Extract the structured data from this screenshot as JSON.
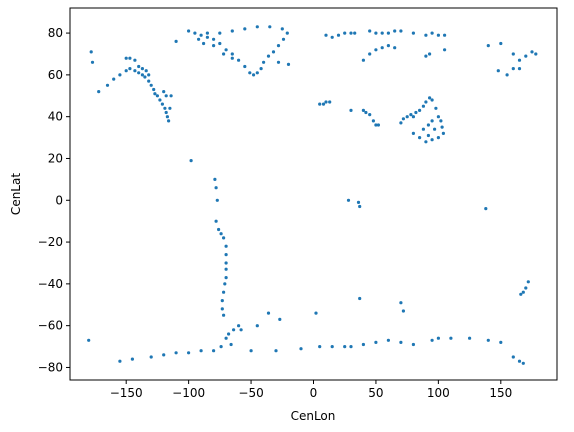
{
  "chart_data": {
    "type": "scatter",
    "xlabel": "CenLon",
    "ylabel": "CenLat",
    "xlim": [
      -195,
      195
    ],
    "ylim": [
      -86,
      92
    ],
    "xticks": [
      -150,
      -100,
      -50,
      0,
      50,
      100,
      150
    ],
    "yticks": [
      -80,
      -60,
      -40,
      -20,
      0,
      20,
      40,
      60,
      80
    ],
    "xtick_labels": [
      "−150",
      "−100",
      "−50",
      "0",
      "50",
      "100",
      "150"
    ],
    "ytick_labels": [
      "−80",
      "−60",
      "−40",
      "−20",
      "0",
      "20",
      "40",
      "60",
      "80"
    ],
    "grid": false,
    "marker_color": "#1f77b4",
    "marker_size": "small dots",
    "series": [
      {
        "points": [
          [
            -178,
            71
          ],
          [
            -177,
            66
          ],
          [
            -172,
            52
          ],
          [
            -165,
            55
          ],
          [
            -160,
            58
          ],
          [
            -155,
            60
          ],
          [
            -150,
            62
          ],
          [
            -147,
            63
          ],
          [
            -143,
            62
          ],
          [
            -140,
            61
          ],
          [
            -137,
            60
          ],
          [
            -135,
            59
          ],
          [
            -132,
            57
          ],
          [
            -130,
            55
          ],
          [
            -128,
            53
          ],
          [
            -127,
            51
          ],
          [
            -125,
            50
          ],
          [
            -123,
            48
          ],
          [
            -121,
            46
          ],
          [
            -119,
            44
          ],
          [
            -118,
            42
          ],
          [
            -117,
            40
          ],
          [
            -116,
            38
          ],
          [
            -115,
            44
          ],
          [
            -114,
            50
          ],
          [
            -150,
            68
          ],
          [
            -147,
            68
          ],
          [
            -143,
            67
          ],
          [
            -140,
            64
          ],
          [
            -137,
            63
          ],
          [
            -134,
            62
          ],
          [
            -132,
            60
          ],
          [
            -120,
            52
          ],
          [
            -118,
            50
          ],
          [
            -110,
            76
          ],
          [
            -100,
            81
          ],
          [
            -95,
            80
          ],
          [
            -90,
            79
          ],
          [
            -85,
            78
          ],
          [
            -80,
            77
          ],
          [
            -75,
            75
          ],
          [
            -70,
            72
          ],
          [
            -65,
            70
          ],
          [
            -60,
            67
          ],
          [
            -55,
            64
          ],
          [
            -51,
            61
          ],
          [
            -48,
            60
          ],
          [
            -45,
            61
          ],
          [
            -42,
            63
          ],
          [
            -40,
            66
          ],
          [
            -36,
            69
          ],
          [
            -32,
            71
          ],
          [
            -28,
            74
          ],
          [
            -24,
            77
          ],
          [
            -21,
            80
          ],
          [
            -25,
            82
          ],
          [
            -35,
            83
          ],
          [
            -45,
            83
          ],
          [
            -55,
            82
          ],
          [
            -65,
            81
          ],
          [
            -75,
            80
          ],
          [
            -85,
            80
          ],
          [
            -92,
            77
          ],
          [
            -88,
            75
          ],
          [
            -80,
            74
          ],
          [
            -72,
            70
          ],
          [
            -65,
            68
          ],
          [
            -28,
            66
          ],
          [
            -20,
            65
          ],
          [
            -98,
            19
          ],
          [
            -79,
            10
          ],
          [
            -78,
            6
          ],
          [
            -77,
            0
          ],
          [
            -78,
            -10
          ],
          [
            -76,
            -14
          ],
          [
            -74,
            -16
          ],
          [
            -72,
            -18
          ],
          [
            -70,
            -22
          ],
          [
            -70,
            -26
          ],
          [
            -70,
            -30
          ],
          [
            -70,
            -33
          ],
          [
            -70,
            -37
          ],
          [
            -71,
            -40
          ],
          [
            -72,
            -44
          ],
          [
            -73,
            -48
          ],
          [
            -73,
            -52
          ],
          [
            -72,
            -55
          ],
          [
            -70,
            -66
          ],
          [
            -68,
            -64
          ],
          [
            -64,
            -62
          ],
          [
            -60,
            -60
          ],
          [
            -58,
            -62
          ],
          [
            -45,
            -60
          ],
          [
            -36,
            -54
          ],
          [
            -27,
            -57
          ],
          [
            2,
            -54
          ],
          [
            -180,
            -67
          ],
          [
            -155,
            -77
          ],
          [
            -145,
            -76
          ],
          [
            -130,
            -75
          ],
          [
            -120,
            -74
          ],
          [
            -110,
            -73
          ],
          [
            -100,
            -73
          ],
          [
            -90,
            -72
          ],
          [
            -80,
            -72
          ],
          [
            -74,
            -70
          ],
          [
            -66,
            -69
          ],
          [
            -50,
            -72
          ],
          [
            -30,
            -72
          ],
          [
            -10,
            -71
          ],
          [
            5,
            -70
          ],
          [
            15,
            -70
          ],
          [
            25,
            -70
          ],
          [
            30,
            -70
          ],
          [
            40,
            -69
          ],
          [
            50,
            -68
          ],
          [
            60,
            -67
          ],
          [
            70,
            -68
          ],
          [
            80,
            -69
          ],
          [
            95,
            -67
          ],
          [
            100,
            -66
          ],
          [
            110,
            -66
          ],
          [
            125,
            -66
          ],
          [
            140,
            -67
          ],
          [
            150,
            -68
          ],
          [
            160,
            -75
          ],
          [
            165,
            -77
          ],
          [
            168,
            -78
          ],
          [
            10,
            79
          ],
          [
            15,
            78
          ],
          [
            20,
            79
          ],
          [
            25,
            80
          ],
          [
            30,
            80
          ],
          [
            33,
            80
          ],
          [
            45,
            81
          ],
          [
            50,
            80
          ],
          [
            55,
            80
          ],
          [
            60,
            80
          ],
          [
            65,
            81
          ],
          [
            70,
            81
          ],
          [
            80,
            80
          ],
          [
            90,
            79
          ],
          [
            95,
            80
          ],
          [
            100,
            79
          ],
          [
            105,
            79
          ],
          [
            40,
            67
          ],
          [
            45,
            70
          ],
          [
            50,
            72
          ],
          [
            55,
            73
          ],
          [
            60,
            74
          ],
          [
            65,
            73
          ],
          [
            90,
            69
          ],
          [
            93,
            70
          ],
          [
            105,
            72
          ],
          [
            140,
            74
          ],
          [
            150,
            75
          ],
          [
            160,
            70
          ],
          [
            165,
            67
          ],
          [
            170,
            69
          ],
          [
            175,
            71
          ],
          [
            178,
            70
          ],
          [
            165,
            63
          ],
          [
            160,
            63
          ],
          [
            155,
            60
          ],
          [
            148,
            62
          ],
          [
            5,
            46
          ],
          [
            8,
            46
          ],
          [
            10,
            47
          ],
          [
            13,
            47
          ],
          [
            30,
            43
          ],
          [
            40,
            43
          ],
          [
            42,
            42
          ],
          [
            45,
            41
          ],
          [
            48,
            38
          ],
          [
            50,
            36
          ],
          [
            52,
            36
          ],
          [
            70,
            37
          ],
          [
            72,
            39
          ],
          [
            75,
            40
          ],
          [
            78,
            41
          ],
          [
            80,
            40
          ],
          [
            82,
            42
          ],
          [
            85,
            43
          ],
          [
            88,
            45
          ],
          [
            90,
            47
          ],
          [
            93,
            49
          ],
          [
            95,
            48
          ],
          [
            98,
            44
          ],
          [
            100,
            40
          ],
          [
            102,
            38
          ],
          [
            103,
            35
          ],
          [
            104,
            32
          ],
          [
            100,
            30
          ],
          [
            95,
            29
          ],
          [
            90,
            28
          ],
          [
            85,
            30
          ],
          [
            80,
            32
          ],
          [
            88,
            34
          ],
          [
            92,
            36
          ],
          [
            95,
            38
          ],
          [
            97,
            34
          ],
          [
            92,
            31
          ],
          [
            28,
            0
          ],
          [
            36,
            -1
          ],
          [
            37,
            -3
          ],
          [
            138,
            -4
          ],
          [
            37,
            -47
          ],
          [
            70,
            -49
          ],
          [
            72,
            -53
          ],
          [
            172,
            -39
          ],
          [
            170,
            -42
          ],
          [
            168,
            -44
          ],
          [
            166,
            -45
          ]
        ]
      }
    ]
  }
}
